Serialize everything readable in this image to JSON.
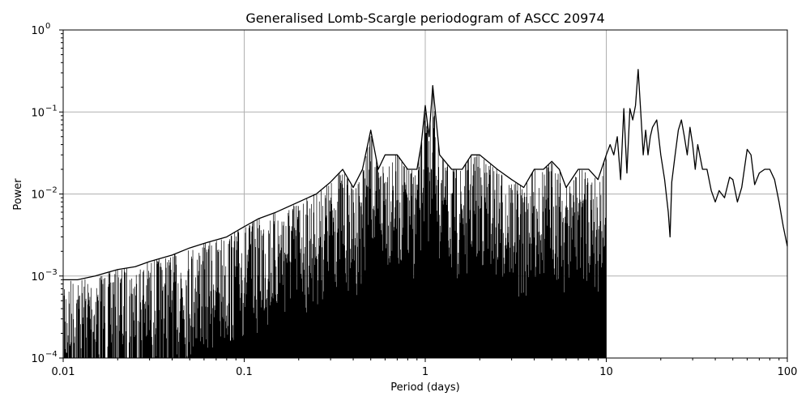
{
  "chart_data": {
    "type": "line",
    "title": "Generalised Lomb-Scargle periodogram of ASCC 20974",
    "xlabel": "Period (days)",
    "ylabel": "Power",
    "xscale": "log",
    "yscale": "log",
    "xlim": [
      0.01,
      100
    ],
    "ylim": [
      0.0001,
      1
    ],
    "grid": true,
    "line_color": "#000000",
    "x_ticks": [
      {
        "value": 0.01,
        "label": "0.01"
      },
      {
        "value": 0.1,
        "label": "0.1"
      },
      {
        "value": 1,
        "label": "1"
      },
      {
        "value": 10,
        "label": "10"
      },
      {
        "value": 100,
        "label": "100"
      }
    ],
    "y_ticks": [
      {
        "value": 0.0001,
        "base": "10",
        "exp": "−4"
      },
      {
        "value": 0.001,
        "base": "10",
        "exp": "−3"
      },
      {
        "value": 0.01,
        "base": "10",
        "exp": "−2"
      },
      {
        "value": 0.1,
        "base": "10",
        "exp": "−1"
      },
      {
        "value": 1,
        "base": "10",
        "exp": "0"
      }
    ],
    "series": [
      {
        "name": "",
        "x": [
          0.01,
          0.012,
          0.015,
          0.02,
          0.025,
          0.03,
          0.04,
          0.05,
          0.06,
          0.08,
          0.1,
          0.12,
          0.15,
          0.2,
          0.25,
          0.3,
          0.35,
          0.4,
          0.45,
          0.5,
          0.55,
          0.6,
          0.7,
          0.8,
          0.9,
          0.95,
          1.0,
          1.05,
          1.1,
          1.2,
          1.4,
          1.6,
          1.8,
          2.0,
          2.5,
          3.0,
          3.5,
          4.0,
          4.5,
          5.0,
          5.5,
          6.0,
          7.0,
          8.0,
          9.0,
          10.0,
          10.5,
          11.0,
          11.5,
          12.0,
          12.5,
          13.0,
          13.5,
          14.0,
          14.5,
          15.0,
          15.5,
          16.0,
          16.5,
          17.0,
          17.5,
          18.0,
          19.0,
          20.0,
          21.0,
          22.0,
          22.5,
          23.0,
          24.0,
          25.0,
          26.0,
          27.0,
          28.0,
          29.0,
          30.0,
          31.0,
          32.0,
          34.0,
          36.0,
          38.0,
          40.0,
          42.0,
          45.0,
          48.0,
          50.0,
          53.0,
          56.0,
          60.0,
          63.0,
          66.0,
          70.0,
          75.0,
          80.0,
          85.0,
          90.0,
          95.0,
          100.0
        ],
        "y": [
          0.0009,
          0.0009,
          0.001,
          0.0012,
          0.0013,
          0.0015,
          0.0018,
          0.0022,
          0.0025,
          0.003,
          0.004,
          0.005,
          0.006,
          0.008,
          0.01,
          0.014,
          0.02,
          0.012,
          0.02,
          0.06,
          0.02,
          0.03,
          0.03,
          0.02,
          0.02,
          0.04,
          0.12,
          0.05,
          0.21,
          0.03,
          0.02,
          0.02,
          0.03,
          0.03,
          0.02,
          0.015,
          0.012,
          0.02,
          0.02,
          0.025,
          0.02,
          0.012,
          0.02,
          0.02,
          0.015,
          0.03,
          0.04,
          0.03,
          0.05,
          0.015,
          0.11,
          0.018,
          0.11,
          0.08,
          0.12,
          0.33,
          0.1,
          0.03,
          0.06,
          0.03,
          0.05,
          0.065,
          0.08,
          0.03,
          0.015,
          0.006,
          0.003,
          0.014,
          0.03,
          0.06,
          0.08,
          0.05,
          0.03,
          0.065,
          0.04,
          0.02,
          0.04,
          0.02,
          0.02,
          0.011,
          0.008,
          0.011,
          0.009,
          0.016,
          0.015,
          0.008,
          0.012,
          0.035,
          0.03,
          0.013,
          0.018,
          0.02,
          0.02,
          0.015,
          0.008,
          0.004,
          0.0023
        ]
      }
    ],
    "noise_floor_start": 0.0001,
    "noise_floor_end": 10.0
  }
}
